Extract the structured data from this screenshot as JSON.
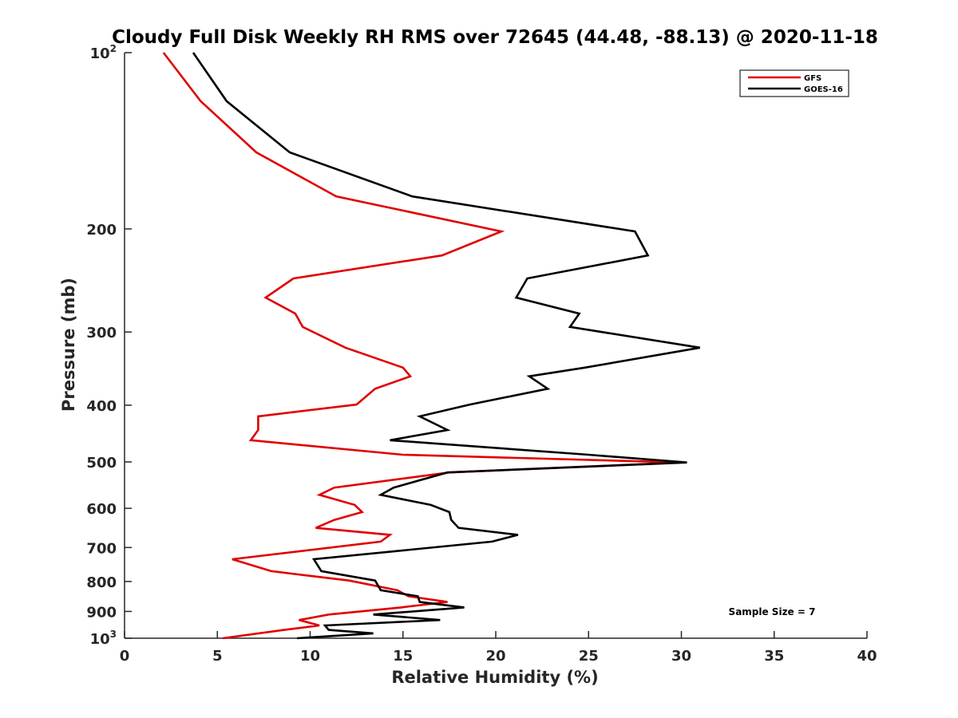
{
  "chart_data": {
    "type": "line",
    "title": "Cloudy Full Disk Weekly RH RMS over 72645 (44.48, -88.13) @ 2020-11-18",
    "xlabel": "Relative Humidity (%)",
    "ylabel": "Pressure (mb)",
    "xlim": [
      0,
      40
    ],
    "ylim": [
      100,
      1000
    ],
    "y_scale": "log",
    "y_reversed": true,
    "grid": false,
    "legend_position": "top-right",
    "x_ticks": [
      {
        "value": 0,
        "label": "0"
      },
      {
        "value": 5,
        "label": "5"
      },
      {
        "value": 10,
        "label": "10"
      },
      {
        "value": 15,
        "label": "15"
      },
      {
        "value": 20,
        "label": "20"
      },
      {
        "value": 25,
        "label": "25"
      },
      {
        "value": 30,
        "label": "30"
      },
      {
        "value": 35,
        "label": "35"
      },
      {
        "value": 40,
        "label": "40"
      }
    ],
    "y_ticks": [
      {
        "value": 100,
        "label": "10",
        "sup": "2"
      },
      {
        "value": 200,
        "label": "200"
      },
      {
        "value": 300,
        "label": "300"
      },
      {
        "value": 400,
        "label": "400"
      },
      {
        "value": 500,
        "label": "500"
      },
      {
        "value": 600,
        "label": "600"
      },
      {
        "value": 700,
        "label": "700"
      },
      {
        "value": 800,
        "label": "800"
      },
      {
        "value": 900,
        "label": "900"
      },
      {
        "value": 1000,
        "label": "10",
        "sup": "3"
      }
    ],
    "annotation": "Sample Size = 7",
    "series": [
      {
        "name": "GFS",
        "color": "#e00000",
        "points": [
          [
            2.1,
            100
          ],
          [
            4.1,
            121
          ],
          [
            7.1,
            148
          ],
          [
            11.4,
            176
          ],
          [
            20.3,
            202
          ],
          [
            17.1,
            222
          ],
          [
            9.1,
            243
          ],
          [
            7.6,
            262
          ],
          [
            9.2,
            279
          ],
          [
            9.6,
            294
          ],
          [
            11.9,
            319
          ],
          [
            15.0,
            345
          ],
          [
            15.4,
            357
          ],
          [
            13.5,
            375
          ],
          [
            12.5,
            399
          ],
          [
            7.2,
            418
          ],
          [
            7.2,
            441
          ],
          [
            6.8,
            459
          ],
          [
            15.0,
            486
          ],
          [
            30.0,
            501
          ],
          [
            17.5,
            521
          ],
          [
            11.3,
            553
          ],
          [
            10.5,
            569
          ],
          [
            12.4,
            592
          ],
          [
            12.8,
            609
          ],
          [
            11.3,
            628
          ],
          [
            10.3,
            648
          ],
          [
            14.3,
            666
          ],
          [
            13.8,
            684
          ],
          [
            5.8,
            733
          ],
          [
            7.9,
            768
          ],
          [
            12.1,
            797
          ],
          [
            14.7,
            828
          ],
          [
            15.3,
            848
          ],
          [
            17.4,
            867
          ],
          [
            14.9,
            886
          ],
          [
            11.0,
            911
          ],
          [
            9.4,
            931
          ],
          [
            10.5,
            951
          ],
          [
            8.6,
            968
          ],
          [
            5.3,
            1000
          ]
        ]
      },
      {
        "name": "GOES-16",
        "color": "#000000",
        "points": [
          [
            3.7,
            100
          ],
          [
            5.5,
            121
          ],
          [
            8.9,
            148
          ],
          [
            15.5,
            176
          ],
          [
            27.5,
            202
          ],
          [
            28.2,
            222
          ],
          [
            21.7,
            243
          ],
          [
            21.1,
            262
          ],
          [
            24.5,
            279
          ],
          [
            24.0,
            294
          ],
          [
            31.0,
            319
          ],
          [
            24.8,
            345
          ],
          [
            21.8,
            357
          ],
          [
            22.8,
            375
          ],
          [
            18.6,
            399
          ],
          [
            15.9,
            418
          ],
          [
            17.4,
            441
          ],
          [
            14.3,
            459
          ],
          [
            25.0,
            486
          ],
          [
            30.3,
            501
          ],
          [
            17.4,
            521
          ],
          [
            14.5,
            553
          ],
          [
            13.8,
            569
          ],
          [
            16.5,
            592
          ],
          [
            17.5,
            609
          ],
          [
            17.6,
            628
          ],
          [
            18.0,
            648
          ],
          [
            21.2,
            666
          ],
          [
            19.8,
            684
          ],
          [
            10.2,
            733
          ],
          [
            10.6,
            768
          ],
          [
            13.5,
            797
          ],
          [
            13.8,
            828
          ],
          [
            15.8,
            848
          ],
          [
            15.9,
            867
          ],
          [
            18.3,
            886
          ],
          [
            13.4,
            911
          ],
          [
            17.0,
            931
          ],
          [
            10.8,
            951
          ],
          [
            11.0,
            968
          ],
          [
            13.4,
            981
          ],
          [
            9.3,
            1000
          ]
        ]
      }
    ]
  }
}
